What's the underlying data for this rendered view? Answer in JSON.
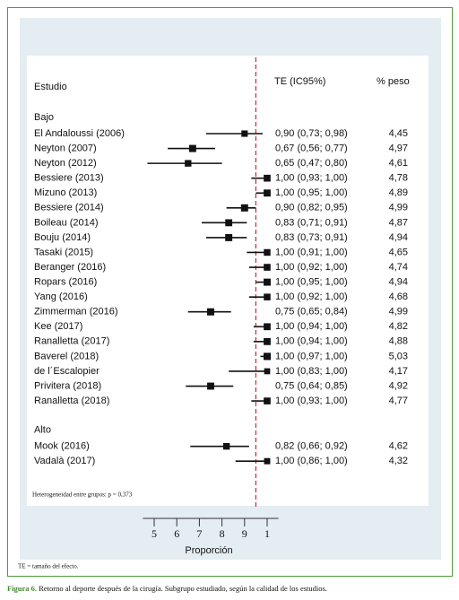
{
  "chart_data": {
    "type": "forest",
    "headers": {
      "study": "Estudio",
      "estimate": "TE (IC95%)",
      "weight": "% peso"
    },
    "groups": [
      {
        "name": "Bajo",
        "studies": [
          {
            "name": "El Andaloussi (2006)",
            "value": 0.9,
            "ci": [
              0.73,
              0.98
            ],
            "value_label": "0,90 (0,73; 0,98)",
            "weight": 4.45,
            "weight_label": "4,45"
          },
          {
            "name": "Neyton (2007)",
            "value": 0.67,
            "ci": [
              0.56,
              0.77
            ],
            "value_label": "0,67 (0,56; 0,77)",
            "weight": 4.97,
            "weight_label": "4,97"
          },
          {
            "name": "Neyton (2012)",
            "value": 0.65,
            "ci": [
              0.47,
              0.8
            ],
            "value_label": "0,65 (0,47; 0,80)",
            "weight": 4.61,
            "weight_label": "4,61"
          },
          {
            "name": "Bessiere (2013)",
            "value": 1.0,
            "ci": [
              0.93,
              1.0
            ],
            "value_label": "1,00 (0,93; 1,00)",
            "weight": 4.78,
            "weight_label": "4,78"
          },
          {
            "name": "Mizuno (2013)",
            "value": 1.0,
            "ci": [
              0.95,
              1.0
            ],
            "value_label": "1,00 (0,95; 1,00)",
            "weight": 4.89,
            "weight_label": "4,89"
          },
          {
            "name": "Bessiere (2014)",
            "value": 0.9,
            "ci": [
              0.82,
              0.95
            ],
            "value_label": "0,90 (0,82; 0,95)",
            "weight": 4.99,
            "weight_label": "4,99"
          },
          {
            "name": "Boileau (2014)",
            "value": 0.83,
            "ci": [
              0.71,
              0.91
            ],
            "value_label": "0,83 (0,71; 0,91)",
            "weight": 4.87,
            "weight_label": "4,87"
          },
          {
            "name": "Bouju (2014)",
            "value": 0.83,
            "ci": [
              0.73,
              0.91
            ],
            "value_label": "0,83 (0,73; 0,91)",
            "weight": 4.94,
            "weight_label": "4,94"
          },
          {
            "name": "Tasaki  (2015)",
            "value": 1.0,
            "ci": [
              0.91,
              1.0
            ],
            "value_label": "1,00 (0,91; 1,00)",
            "weight": 4.65,
            "weight_label": "4,65"
          },
          {
            "name": "Beranger (2016)",
            "value": 1.0,
            "ci": [
              0.92,
              1.0
            ],
            "value_label": "1,00 (0,92; 1,00)",
            "weight": 4.74,
            "weight_label": "4,74"
          },
          {
            "name": "Ropars (2016)",
            "value": 1.0,
            "ci": [
              0.95,
              1.0
            ],
            "value_label": "1,00 (0,95; 1,00)",
            "weight": 4.94,
            "weight_label": "4,94"
          },
          {
            "name": "Yang (2016)",
            "value": 1.0,
            "ci": [
              0.92,
              1.0
            ],
            "value_label": "1,00 (0,92; 1,00)",
            "weight": 4.68,
            "weight_label": "4,68"
          },
          {
            "name": "Zimmerman (2016)",
            "value": 0.75,
            "ci": [
              0.65,
              0.84
            ],
            "value_label": "0,75 (0,65; 0,84)",
            "weight": 4.99,
            "weight_label": "4,99"
          },
          {
            "name": "Kee (2017)",
            "value": 1.0,
            "ci": [
              0.94,
              1.0
            ],
            "value_label": "1,00 (0,94; 1,00)",
            "weight": 4.82,
            "weight_label": "4,82"
          },
          {
            "name": "Ranalletta (2017)",
            "value": 1.0,
            "ci": [
              0.94,
              1.0
            ],
            "value_label": "1,00 (0,94; 1,00)",
            "weight": 4.88,
            "weight_label": "4,88"
          },
          {
            "name": "Baverel (2018)",
            "value": 1.0,
            "ci": [
              0.97,
              1.0
            ],
            "value_label": "1,00 (0,97; 1,00)",
            "weight": 5.03,
            "weight_label": "5,03"
          },
          {
            "name": "de l´Escalopier",
            "value": 1.0,
            "ci": [
              0.83,
              1.0
            ],
            "value_label": "1,00 (0,83; 1,00)",
            "weight": 4.17,
            "weight_label": "4,17"
          },
          {
            "name": "Privitera (2018)",
            "value": 0.75,
            "ci": [
              0.64,
              0.85
            ],
            "value_label": "0,75 (0,64; 0,85)",
            "weight": 4.92,
            "weight_label": "4,92"
          },
          {
            "name": "Ranalletta (2018)",
            "value": 1.0,
            "ci": [
              0.93,
              1.0
            ],
            "value_label": "1,00 (0,93; 1,00)",
            "weight": 4.77,
            "weight_label": "4,77"
          }
        ]
      },
      {
        "name": "Alto",
        "studies": [
          {
            "name": "Mook (2016)",
            "value": 0.82,
            "ci": [
              0.66,
              0.92
            ],
            "value_label": "0,82 (0,66; 0,92)",
            "weight": 4.62,
            "weight_label": "4,62"
          },
          {
            "name": "Vadalà (2017)",
            "value": 1.0,
            "ci": [
              0.86,
              1.0
            ],
            "value_label": "1,00 (0,86; 1,00)",
            "weight": 4.32,
            "weight_label": "4,32"
          }
        ]
      }
    ],
    "ref_line": 0.95,
    "ref_color": "#d9232a",
    "xlim": [
      0.45,
      1.05
    ],
    "xticks": [
      {
        "value": 0.5,
        "label": "5"
      },
      {
        "value": 0.6,
        "label": "6"
      },
      {
        "value": 0.7,
        "label": "7"
      },
      {
        "value": 0.8,
        "label": "8"
      },
      {
        "value": 0.9,
        "label": "9"
      },
      1
    ],
    "xlabel": "Proporción",
    "heterogeneity": "Heterogeneidad entre grupos: p = 0,373",
    "footnote": "TE = tamaño del efecto.",
    "caption_label": "Figura 6.",
    "caption": "Retorno al deporte después de la cirugía. Subgrupo estudiado, según la calidad de los estudios."
  }
}
